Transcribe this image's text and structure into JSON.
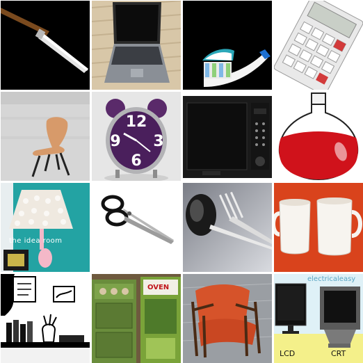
{
  "title": "",
  "tiles": [
    {
      "subject": "knife"
    },
    {
      "subject": "laptop"
    },
    {
      "subject": "toothbrush"
    },
    {
      "subject": "calculator"
    },
    {
      "subject": "chair"
    },
    {
      "subject": "alarm-clock"
    },
    {
      "subject": "microwave"
    },
    {
      "subject": "flask"
    },
    {
      "subject": "lamp",
      "watermark": "the idea room"
    },
    {
      "subject": "scissors"
    },
    {
      "subject": "spoon-and-fork"
    },
    {
      "subject": "mugs"
    },
    {
      "subject": "shelf-illustration"
    },
    {
      "subject": "toy-oven",
      "box_text": "OVEN"
    },
    {
      "subject": "armchair"
    },
    {
      "subject": "monitors",
      "watermark": "electricaleasy",
      "left_label": "LCD",
      "right_label": "CRT"
    }
  ],
  "colors": {
    "background": "#ffffff",
    "flask_liquid": "#d0121b",
    "chair_seat": "#d79a6a",
    "mug_backdrop": "#d9431c",
    "clock_purple": "#5a2a6a"
  }
}
